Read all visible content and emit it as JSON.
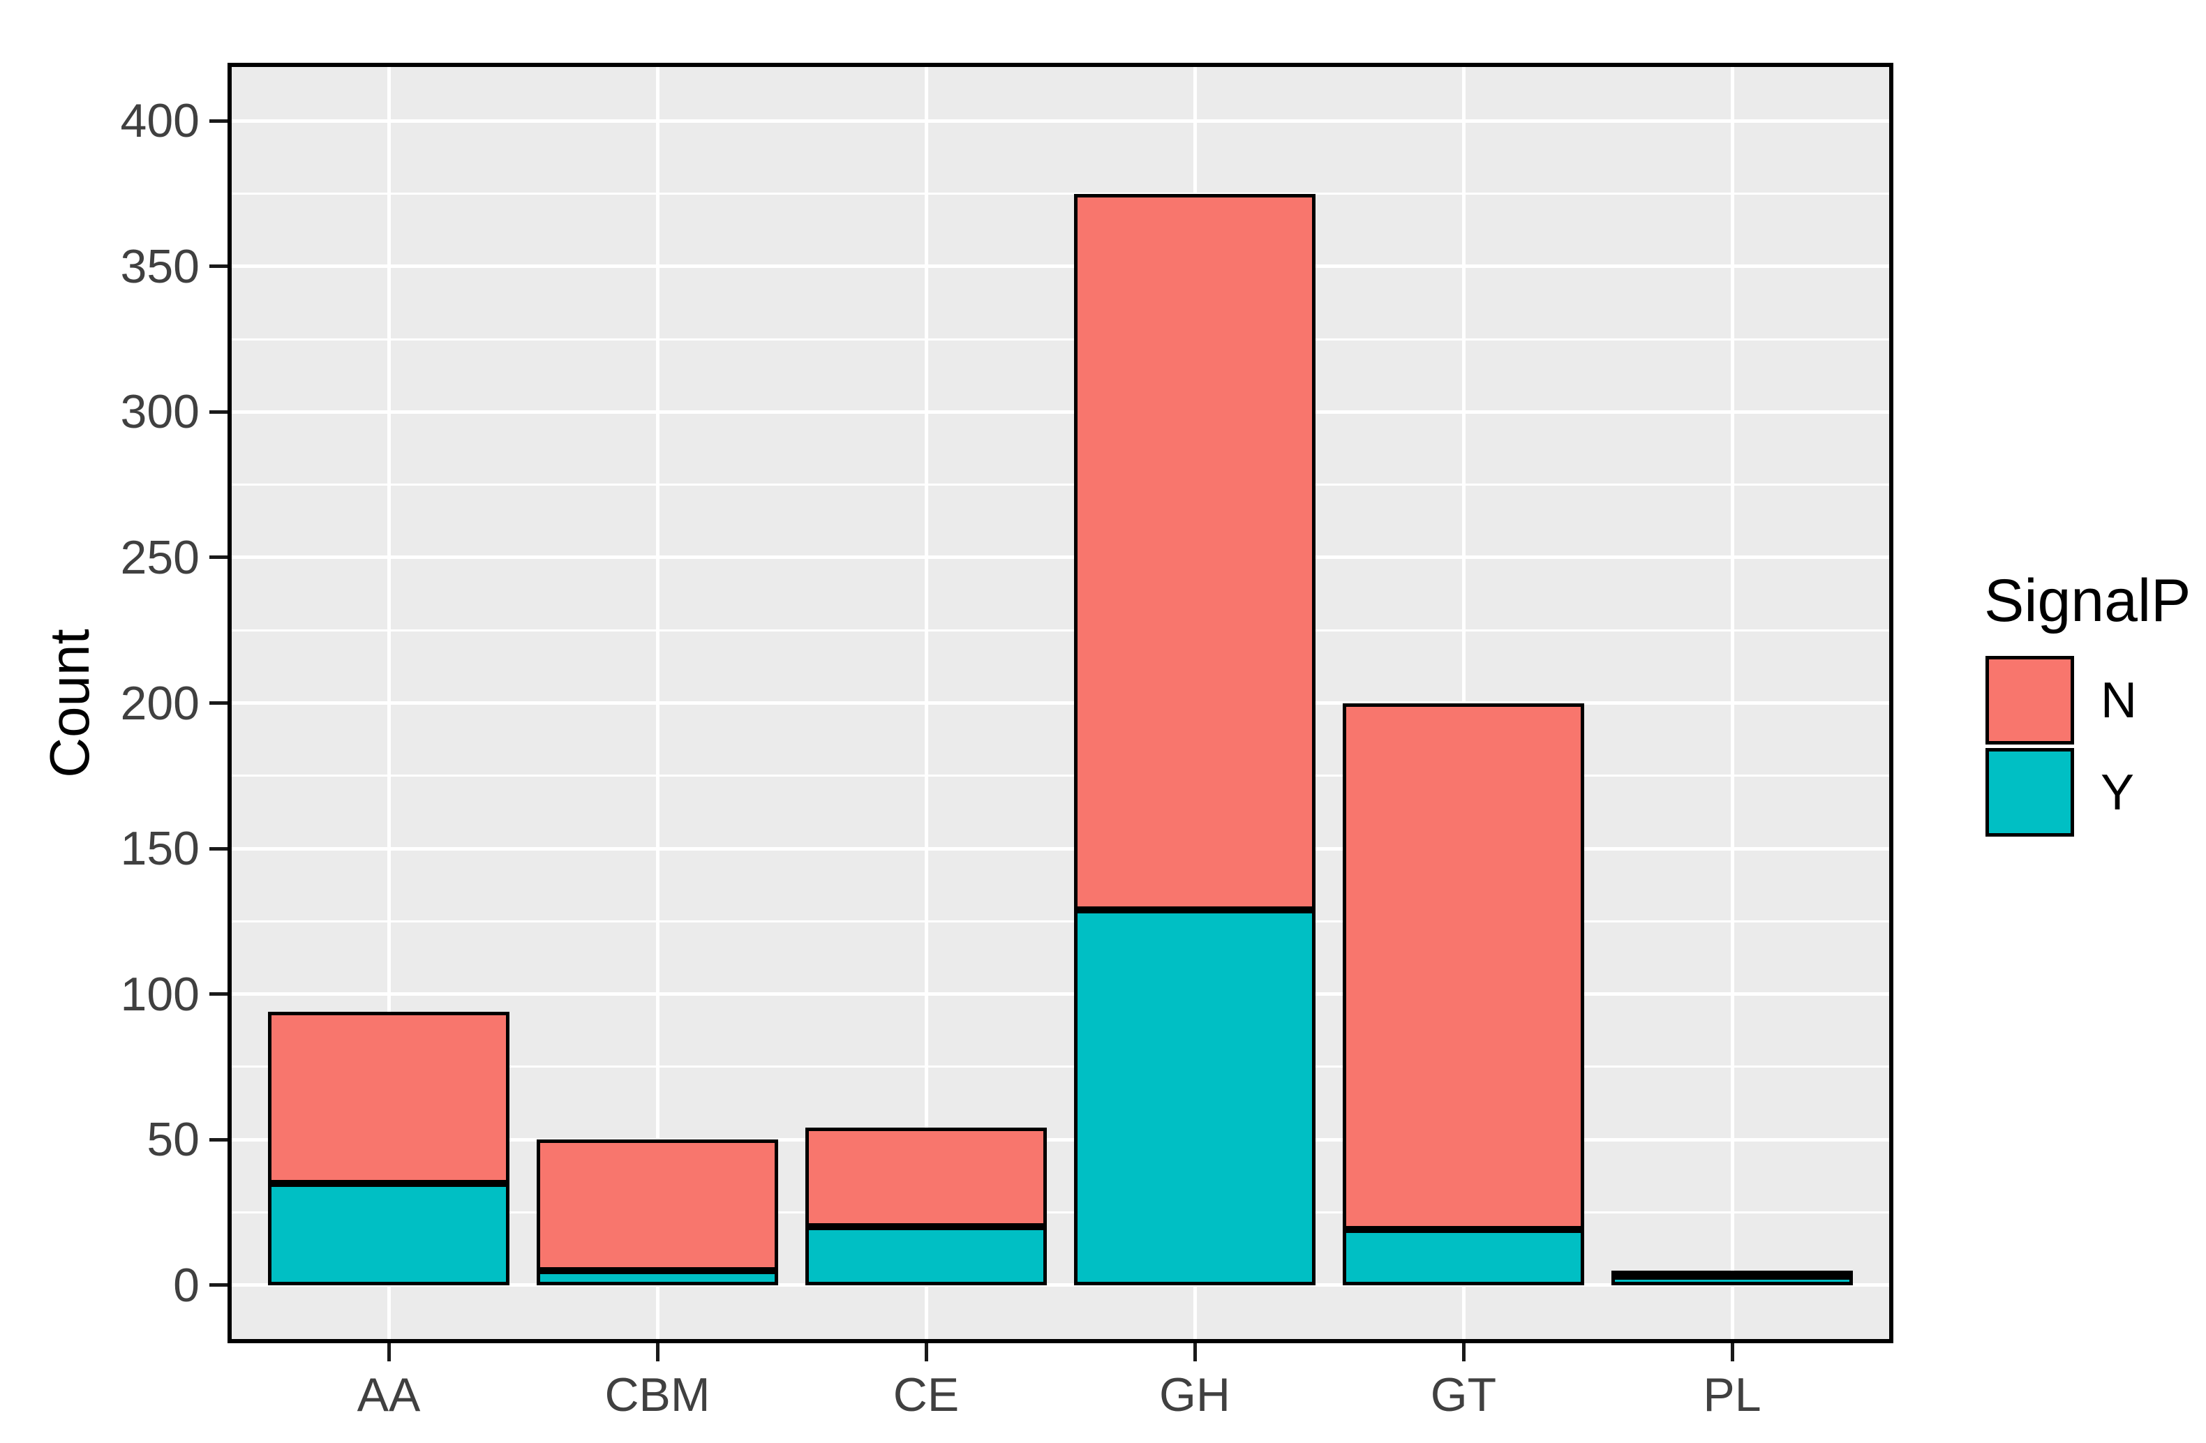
{
  "chart_data": {
    "type": "bar",
    "stacked": true,
    "title": "",
    "categories": [
      "AA",
      "CBM",
      "CE",
      "GH",
      "GT",
      "PL"
    ],
    "series": [
      {
        "name": "N",
        "color": "#F8766D",
        "values": [
          59,
          45,
          34,
          246,
          181,
          2
        ]
      },
      {
        "name": "Y",
        "color": "#00BFC4",
        "values": [
          35,
          5,
          20,
          129,
          19,
          3
        ]
      }
    ],
    "stack_order_bottom_to_top": [
      "Y",
      "N"
    ],
    "totals": [
      94,
      50,
      54,
      375,
      200,
      5
    ],
    "xlabel": "",
    "ylabel": "Count",
    "ylim": [
      -20,
      420
    ],
    "yticks": [
      0,
      50,
      100,
      150,
      200,
      250,
      300,
      350,
      400
    ],
    "minor_gridlines": [
      25,
      75,
      125,
      175,
      225,
      275,
      325,
      375
    ],
    "grid": true,
    "legend": {
      "title": "SignalP",
      "position": "right",
      "entries": [
        {
          "label": "N",
          "color": "#F8766D"
        },
        {
          "label": "Y",
          "color": "#00BFC4"
        }
      ]
    },
    "colors": {
      "panel_background": "#EBEBEB",
      "gridline": "#FFFFFF",
      "bar_outline": "#000000",
      "axis_text": "#404040",
      "title_text": "#000000"
    }
  }
}
